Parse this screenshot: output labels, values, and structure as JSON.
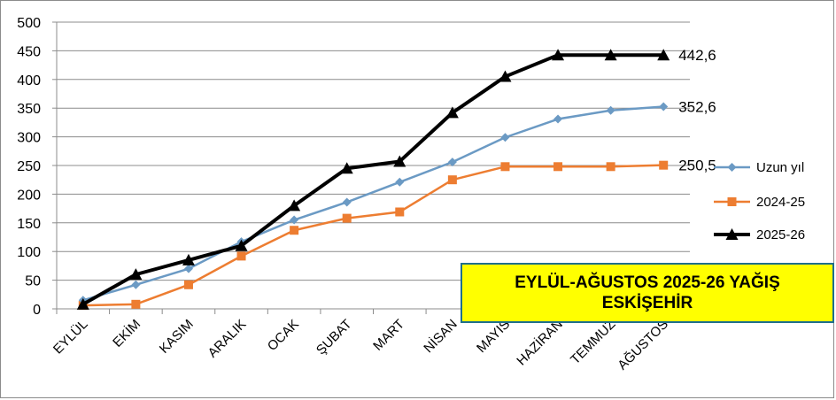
{
  "chart_data": {
    "type": "line",
    "title_lines": [
      "EYLÜL-AĞUSTOS 2025-26 YAĞIŞ",
      "ESKİŞEHİR"
    ],
    "categories": [
      "EYLÜL",
      "EKİM",
      "KASIM",
      "ARALIK",
      "OCAK",
      "ŞUBAT",
      "MART",
      "NİSAN",
      "MAYIS",
      "HAZİRAN",
      "TEMMUZ",
      "AĞUSTOS"
    ],
    "ylim": [
      0,
      500
    ],
    "yticks": [
      "0",
      "50",
      "100",
      "150",
      "200",
      "250",
      "300",
      "350",
      "400",
      "450",
      "500"
    ],
    "grid": "horizontal",
    "legend_position": "right",
    "series": [
      {
        "name": "Uzun yıl",
        "color": "#6b9ac4",
        "marker": "diamond",
        "values": [
          15,
          42,
          70,
          117,
          155,
          186,
          221,
          256,
          299,
          331,
          346,
          352.6
        ],
        "end_label": "352,6"
      },
      {
        "name": "2024-25",
        "color": "#ed7d31",
        "marker": "square",
        "values": [
          6,
          8,
          42,
          92,
          137,
          158,
          169,
          225,
          248,
          248,
          248,
          250.5
        ],
        "end_label": "250,5"
      },
      {
        "name": "2025-26",
        "color": "#000000",
        "marker": "triangle",
        "values": [
          8,
          60,
          85,
          110,
          180,
          245,
          257,
          342,
          405,
          442.6,
          442.6,
          442.6
        ],
        "end_label": "442,6"
      }
    ]
  }
}
